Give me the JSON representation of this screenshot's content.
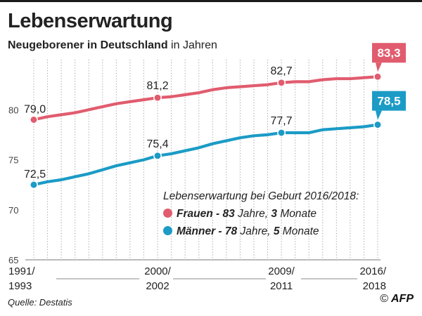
{
  "header": {
    "title": "Lebenserwartung",
    "subtitle_bold": "Neugeborener in Deutschland",
    "subtitle_rest": " in Jahren"
  },
  "legend": {
    "heading": "Lebenserwartung bei Geburt 2016/2018:",
    "women_label": "Frauen",
    "women_sep": " - ",
    "women_years": "83",
    "women_years_word": " Jahre, ",
    "women_months": "3",
    "women_months_word": " Monate",
    "men_label": "Männer",
    "men_sep": " - ",
    "men_years": "78",
    "men_years_word": " Jahre, ",
    "men_months": "5",
    "men_months_word": " Monate"
  },
  "footer": {
    "source": "Quelle: Destatis",
    "copyright": "©",
    "agency": "AFP"
  },
  "chart_data": {
    "type": "line",
    "x": [
      "1991/1993",
      "1992/1994",
      "1993/1995",
      "1994/1996",
      "1995/1997",
      "1996/1998",
      "1997/1999",
      "1998/2000",
      "1999/2001",
      "2000/2002",
      "2001/2003",
      "2002/2004",
      "2003/2005",
      "2004/2006",
      "2005/2007",
      "2006/2008",
      "2007/2009",
      "2008/2010",
      "2009/2011",
      "2010/2012",
      "2011/2013",
      "2012/2014",
      "2013/2015",
      "2014/2016",
      "2015/2017",
      "2016/2018"
    ],
    "x_tick_labels": [
      {
        "index": 0,
        "line1": "1991/",
        "line2": "1993"
      },
      {
        "index": 9,
        "line1": "2000/",
        "line2": "2002"
      },
      {
        "index": 18,
        "line1": "2009/",
        "line2": "2011"
      },
      {
        "index": 25,
        "line1": "2016/",
        "line2": "2018"
      }
    ],
    "ylim": [
      65,
      85
    ],
    "yticks": [
      65,
      70,
      75,
      80
    ],
    "grid": "vertical dotted",
    "series": [
      {
        "name": "Frauen",
        "color": "#e15c6e",
        "values": [
          79.0,
          79.3,
          79.5,
          79.7,
          80.0,
          80.3,
          80.6,
          80.8,
          81.0,
          81.2,
          81.3,
          81.5,
          81.7,
          82.0,
          82.2,
          82.3,
          82.4,
          82.5,
          82.7,
          82.8,
          82.8,
          83.0,
          83.1,
          83.1,
          83.2,
          83.3
        ],
        "labels": [
          {
            "index": 0,
            "text": "79,0"
          },
          {
            "index": 9,
            "text": "81,2"
          },
          {
            "index": 18,
            "text": "82,7"
          },
          {
            "index": 25,
            "text": "83,3",
            "boxed": true
          }
        ]
      },
      {
        "name": "Männer",
        "color": "#1b9bc6",
        "values": [
          72.5,
          72.8,
          73.0,
          73.3,
          73.6,
          74.0,
          74.4,
          74.7,
          75.0,
          75.4,
          75.6,
          75.9,
          76.2,
          76.6,
          76.9,
          77.2,
          77.4,
          77.5,
          77.7,
          77.7,
          77.7,
          78.0,
          78.1,
          78.2,
          78.3,
          78.5
        ],
        "labels": [
          {
            "index": 0,
            "text": "72,5"
          },
          {
            "index": 9,
            "text": "75,4"
          },
          {
            "index": 18,
            "text": "77,7"
          },
          {
            "index": 25,
            "text": "78,5",
            "boxed": true
          }
        ]
      }
    ]
  }
}
